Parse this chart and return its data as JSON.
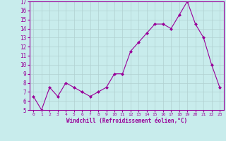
{
  "x": [
    0,
    1,
    2,
    3,
    4,
    5,
    6,
    7,
    8,
    9,
    10,
    11,
    12,
    13,
    14,
    15,
    16,
    17,
    18,
    19,
    20,
    21,
    22,
    23
  ],
  "y": [
    6.5,
    5.0,
    7.5,
    6.5,
    8.0,
    7.5,
    7.0,
    6.5,
    7.0,
    7.5,
    9.0,
    9.0,
    11.5,
    12.5,
    13.5,
    14.5,
    14.5,
    14.0,
    15.5,
    17.0,
    14.5,
    13.0,
    10.0,
    7.5
  ],
  "line_color": "#990099",
  "marker": "D",
  "marker_size": 2,
  "bg_color": "#c8ecec",
  "grid_color": "#b0d0d0",
  "xlabel": "Windchill (Refroidissement éolien,°C)",
  "ylim": [
    5,
    17
  ],
  "xlim": [
    -0.5,
    23.5
  ],
  "yticks": [
    5,
    6,
    7,
    8,
    9,
    10,
    11,
    12,
    13,
    14,
    15,
    16,
    17
  ],
  "xticks": [
    0,
    1,
    2,
    3,
    4,
    5,
    6,
    7,
    8,
    9,
    10,
    11,
    12,
    13,
    14,
    15,
    16,
    17,
    18,
    19,
    20,
    21,
    22,
    23
  ],
  "label_color": "#990099",
  "tick_color": "#990099",
  "spine_color": "#990099"
}
